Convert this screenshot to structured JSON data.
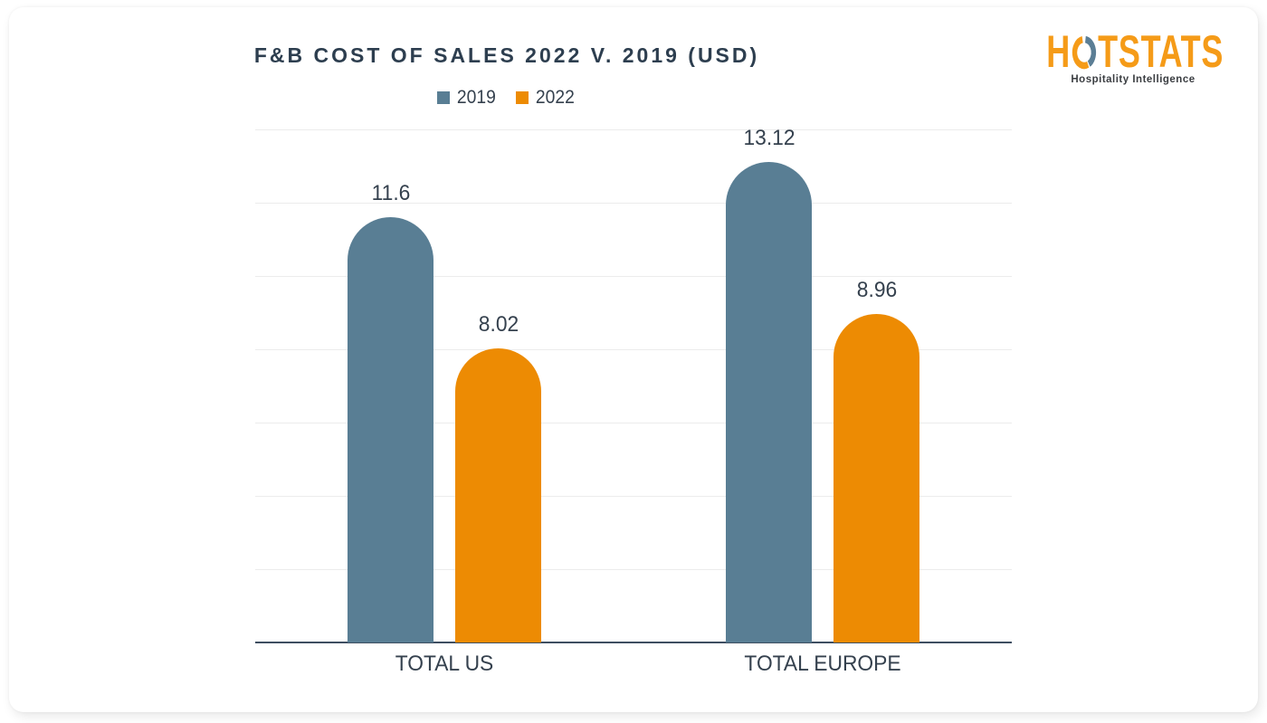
{
  "header": {
    "title": "F&B COST OF SALES 2022 V. 2019 (USD)"
  },
  "logo": {
    "part_before_o": "H",
    "part_after_o": "TSTATS",
    "tagline": "Hospitality Intelligence",
    "orange": "#f59b18",
    "blue": "#5b7e95"
  },
  "chart_data": {
    "type": "bar",
    "title": "F&B COST OF SALES 2022 V. 2019 (USD)",
    "categories": [
      "TOTAL US",
      "TOTAL EUROPE"
    ],
    "series": [
      {
        "name": "2019",
        "color": "#597e94",
        "values": [
          11.6,
          13.12
        ],
        "labels": [
          "11.6",
          "13.12"
        ]
      },
      {
        "name": "2022",
        "color": "#ed8b03",
        "values": [
          8.02,
          8.96
        ],
        "labels": [
          "8.02",
          "8.96"
        ]
      }
    ],
    "ylim": [
      0,
      14
    ],
    "gridline_step": 2,
    "grid": true,
    "y_tick_labels_hidden": true,
    "legend_position": "top",
    "colors": {
      "grid": "#ececec",
      "axis": "#3e4e61",
      "text": "#35414e",
      "title": "#2d3e4f"
    }
  }
}
